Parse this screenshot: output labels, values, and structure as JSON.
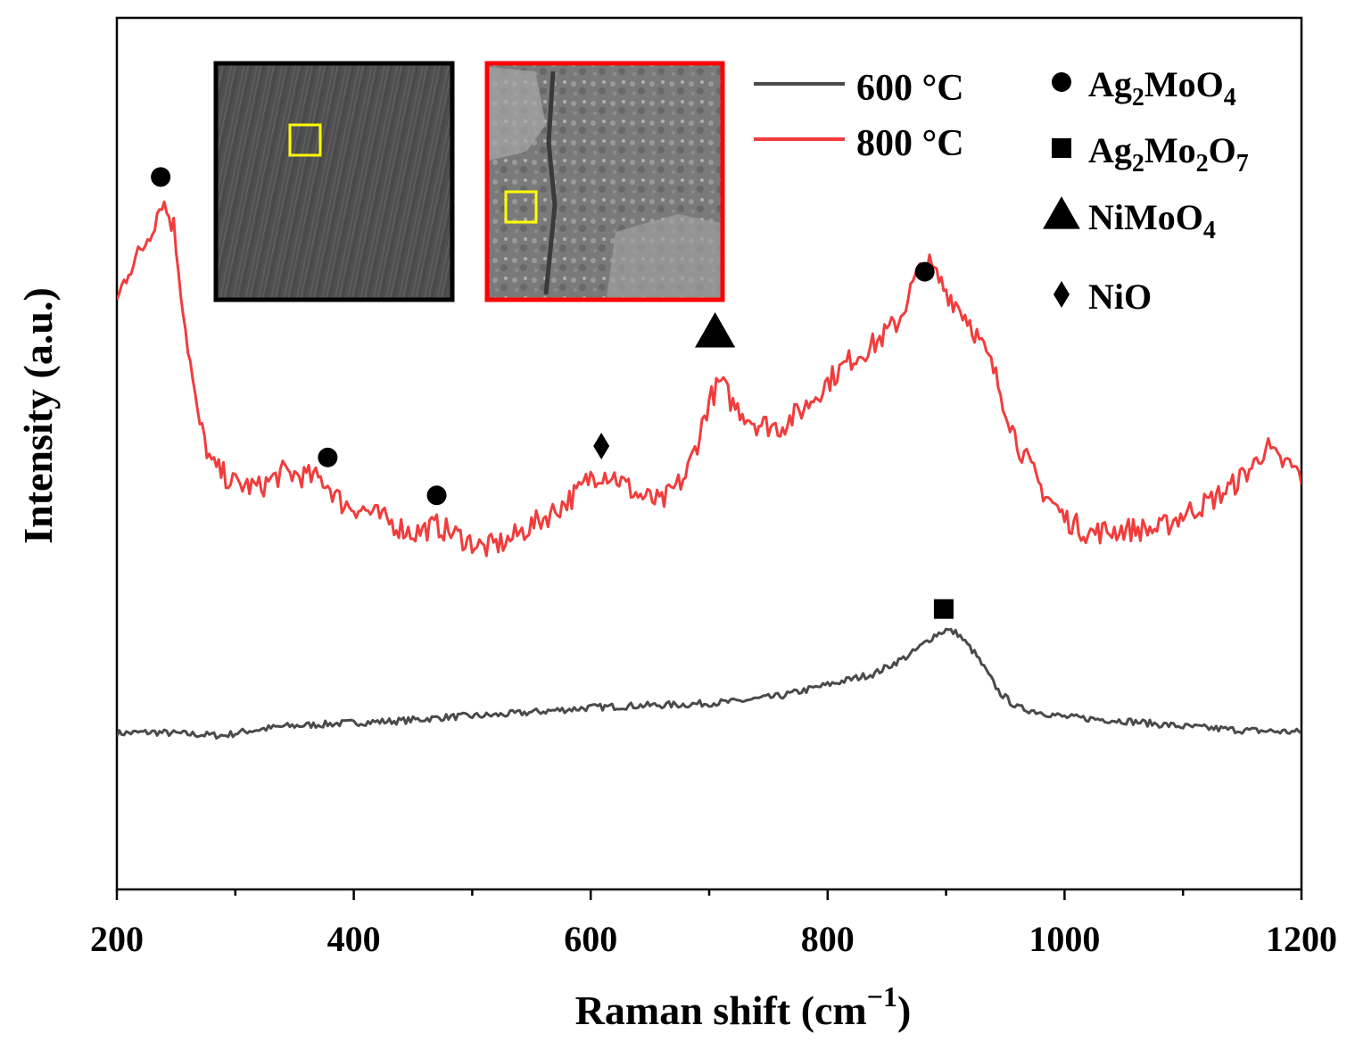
{
  "chart_data": {
    "type": "line",
    "xlabel": "Raman shift (cm",
    "xlabel_sup": "−1",
    "xlabel_close": ")",
    "ylabel": "Intensity (a.u.)",
    "xlim": [
      200,
      1200
    ],
    "x_ticks": [
      "200",
      "400",
      "600",
      "800",
      "1000",
      "1200"
    ],
    "x_tick_values": [
      200,
      400,
      600,
      800,
      1000,
      1200
    ],
    "x_minor_tick_values": [
      300,
      500,
      700,
      900,
      1100
    ],
    "y_ticks_shown": false,
    "grid": false,
    "legend_position": "top-right",
    "series": [
      {
        "name": "600 °C",
        "color": "#4a4a4a",
        "points": [
          [
            200,
            1.2
          ],
          [
            230,
            1.5
          ],
          [
            260,
            1.0
          ],
          [
            290,
            0.6
          ],
          [
            310,
            1.8
          ],
          [
            340,
            3.0
          ],
          [
            370,
            3.5
          ],
          [
            400,
            4.0
          ],
          [
            440,
            4.5
          ],
          [
            480,
            5.5
          ],
          [
            520,
            6.0
          ],
          [
            560,
            7.0
          ],
          [
            600,
            8.0
          ],
          [
            640,
            8.5
          ],
          [
            680,
            8.8
          ],
          [
            720,
            9.5
          ],
          [
            760,
            11.0
          ],
          [
            800,
            14.0
          ],
          [
            840,
            17.0
          ],
          [
            870,
            22.0
          ],
          [
            890,
            27.0
          ],
          [
            900,
            28.5
          ],
          [
            910,
            27.5
          ],
          [
            925,
            22.0
          ],
          [
            945,
            12.0
          ],
          [
            960,
            8.0
          ],
          [
            1000,
            5.5
          ],
          [
            1050,
            4.5
          ],
          [
            1100,
            3.0
          ],
          [
            1150,
            2.0
          ],
          [
            1200,
            1.5
          ]
        ]
      },
      {
        "name": "800 °C",
        "color": "#f23c3c",
        "points": [
          [
            200,
            115
          ],
          [
            210,
            124
          ],
          [
            220,
            128
          ],
          [
            230,
            135
          ],
          [
            238,
            142
          ],
          [
            248,
            135
          ],
          [
            258,
            108
          ],
          [
            268,
            85
          ],
          [
            280,
            72
          ],
          [
            300,
            67
          ],
          [
            320,
            66
          ],
          [
            340,
            70
          ],
          [
            360,
            69
          ],
          [
            375,
            68
          ],
          [
            390,
            62
          ],
          [
            410,
            60
          ],
          [
            430,
            57
          ],
          [
            450,
            54
          ],
          [
            470,
            56
          ],
          [
            490,
            53
          ],
          [
            510,
            50
          ],
          [
            530,
            52
          ],
          [
            550,
            56
          ],
          [
            570,
            60
          ],
          [
            590,
            65
          ],
          [
            600,
            69
          ],
          [
            610,
            70
          ],
          [
            620,
            69
          ],
          [
            640,
            64
          ],
          [
            660,
            62
          ],
          [
            680,
            69
          ],
          [
            690,
            78
          ],
          [
            700,
            89
          ],
          [
            710,
            94
          ],
          [
            720,
            88
          ],
          [
            740,
            83
          ],
          [
            760,
            82
          ],
          [
            780,
            87
          ],
          [
            800,
            94
          ],
          [
            820,
            100
          ],
          [
            840,
            104
          ],
          [
            860,
            110
          ],
          [
            875,
            122
          ],
          [
            885,
            125
          ],
          [
            900,
            118
          ],
          [
            920,
            110
          ],
          [
            940,
            97
          ],
          [
            960,
            78
          ],
          [
            980,
            66
          ],
          [
            1000,
            58
          ],
          [
            1020,
            54
          ],
          [
            1050,
            55
          ],
          [
            1080,
            55
          ],
          [
            1100,
            59
          ],
          [
            1120,
            62
          ],
          [
            1140,
            66
          ],
          [
            1160,
            72
          ],
          [
            1170,
            77
          ],
          [
            1180,
            73
          ],
          [
            1190,
            72
          ],
          [
            1200,
            69
          ]
        ]
      }
    ],
    "markers": [
      {
        "symbol": "circle",
        "x": 237,
        "y": 148
      },
      {
        "symbol": "circle",
        "x": 378,
        "y": 74
      },
      {
        "symbol": "circle",
        "x": 470,
        "y": 64
      },
      {
        "symbol": "diamond",
        "x": 609,
        "y": 77
      },
      {
        "symbol": "triangle",
        "x": 705,
        "y": 107
      },
      {
        "symbol": "circle",
        "x": 882,
        "y": 123
      },
      {
        "symbol": "square",
        "x": 898,
        "y": 34
      }
    ],
    "marker_legend": [
      {
        "symbol": "circle",
        "base": "Ag",
        "sub1": "2",
        "mid": "MoO",
        "sub2": "4",
        "tail": ""
      },
      {
        "symbol": "square",
        "base": "Ag",
        "sub1": "2",
        "mid": "Mo",
        "sub2": "2",
        "tail": "O",
        "sub3": "7"
      },
      {
        "symbol": "triangle",
        "base": "NiMoO",
        "sub1": "4",
        "mid": "",
        "sub2": "",
        "tail": ""
      },
      {
        "symbol": "diamond",
        "base": "NiO",
        "sub1": "",
        "mid": "",
        "sub2": "",
        "tail": ""
      }
    ],
    "insets": [
      {
        "frame_color": "#000000",
        "roi_color": "#ffff00"
      },
      {
        "frame_color": "#ff0000",
        "roi_color": "#ffff00"
      }
    ]
  }
}
